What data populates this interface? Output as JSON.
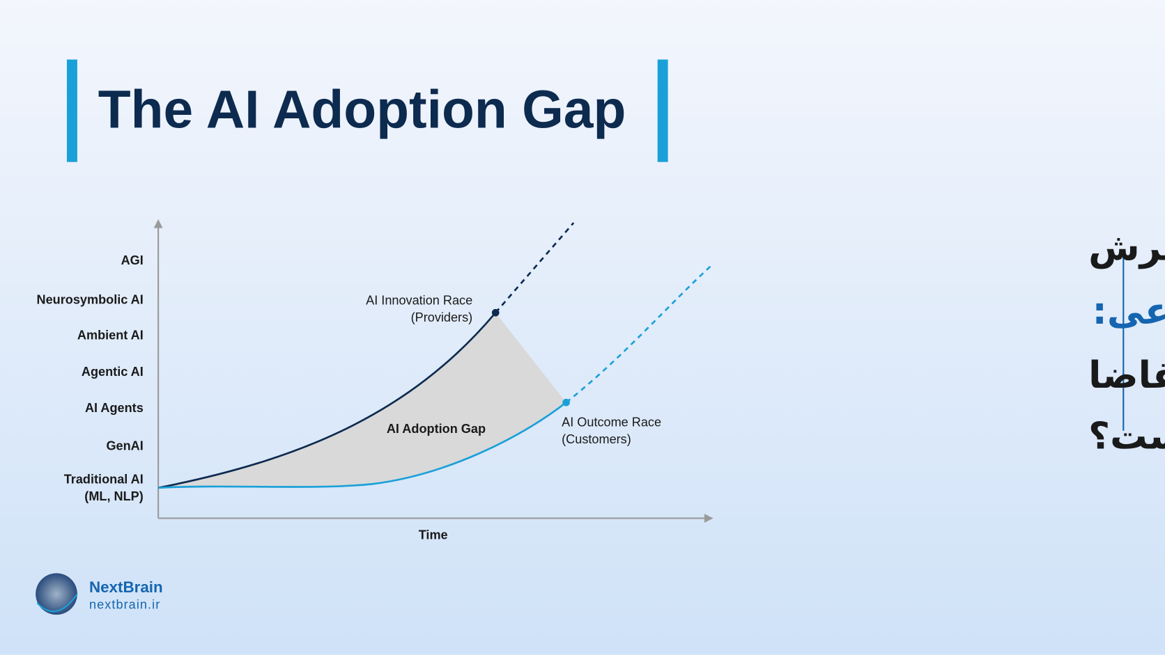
{
  "title": "The AI Adoption Gap",
  "y_axis_labels": [
    [
      "AGI"
    ],
    [
      "Neurosymbolic AI"
    ],
    [
      "Ambient AI"
    ],
    [
      "Agentic AI"
    ],
    [
      "AI Agents"
    ],
    [
      "GenAI"
    ],
    [
      "Traditional AI",
      "(ML, NLP)"
    ]
  ],
  "x_axis_label": "Time",
  "annotations": {
    "innovation": [
      "AI Innovation Race",
      "(Providers)"
    ],
    "gap": "AI Adoption Gap",
    "outcome": [
      "AI Outcome Race",
      "(Customers)"
    ]
  },
  "headline": [
    "شکاف پذیرش",
    "هوش مصنوعی:",
    "چرا عرضه از تقاضا",
    "جلو زده است؟"
  ],
  "logo": {
    "name": "NextBrain",
    "url": "nextbrain.ir"
  }
}
